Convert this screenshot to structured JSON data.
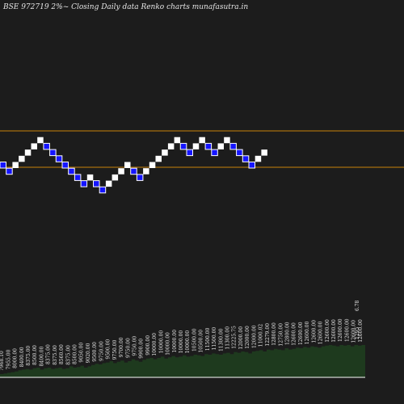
{
  "chart_data": {
    "type": "renko",
    "title": "BSE 972719 2%~  Closing Daily data  Renko  charts munafasutra.in",
    "colors": {
      "background": "#1c1c1c",
      "up_brick_fill": "#ffffff",
      "down_brick_fill": "#1515ff",
      "down_brick_stroke": "#ffffff",
      "hline": "#c8820a",
      "volume_fill": "#1e3a1e",
      "volume_stroke": "#ffffff",
      "text": "#e6e6e6"
    },
    "bricks": [
      "D",
      "D",
      "U",
      "U",
      "U",
      "U",
      "U",
      "D",
      "D",
      "D",
      "D",
      "D",
      "D",
      "D",
      "U",
      "D",
      "D",
      "U",
      "U",
      "U",
      "U",
      "D",
      "D",
      "U",
      "U",
      "U",
      "U",
      "U",
      "U",
      "D",
      "D",
      "U",
      "U",
      "D",
      "D",
      "U",
      "U",
      "D",
      "D",
      "D",
      "D",
      "U",
      "U"
    ],
    "brick_size_pct": 2,
    "horizontal_lines": [
      {
        "level": "upper"
      },
      {
        "level": "lower"
      }
    ],
    "volume_labels": [
      "7968.10",
      "7955.00",
      "8000.00",
      "8400.00",
      "8375.00",
      "8500.00",
      "8400.00",
      "8375.00",
      "8375.00",
      "8560.00",
      "8375.00",
      "8500.00",
      "9050.00",
      "9020.00",
      "9500.00",
      "9750.00",
      "9500.00",
      "9750.00",
      "9700.00",
      "9750.00",
      "9750.00",
      "9900.00",
      "9900.00",
      "10000.00",
      "10000.00",
      "10000.00",
      "10000.00",
      "10000.00",
      "10000.00",
      "10500.00",
      "10500.00",
      "11500.00",
      "11500.00",
      "11300.00",
      "11300.00",
      "12225.75",
      "12000.00",
      "12000.00",
      "12000.00",
      "11000.02",
      "12279.00",
      "12800.00",
      "12750.00",
      "12800.00",
      "12600.00",
      "12600.00",
      "12600.00",
      "12600.00",
      "12600.00",
      "12600.00",
      "12600.00",
      "12600.00",
      "12600.00",
      "12600.00",
      "12600.00"
    ],
    "volume_heights": [
      10,
      12,
      14,
      16,
      18,
      22,
      24,
      26,
      24,
      28,
      30,
      24,
      28,
      30,
      26,
      28,
      30,
      26,
      28,
      34,
      30,
      32,
      36,
      30,
      34,
      38,
      42,
      40,
      44,
      46,
      50,
      44,
      48,
      52,
      46,
      50,
      56,
      52,
      48,
      54,
      58,
      60,
      56,
      60,
      64,
      58,
      62,
      66,
      62,
      64,
      68,
      64,
      66,
      70,
      68,
      66,
      72,
      70,
      74,
      72,
      70,
      74,
      76,
      72,
      78,
      76,
      80,
      78,
      74,
      80,
      82,
      84,
      80,
      86,
      84,
      88,
      86,
      84,
      90,
      86,
      88,
      92,
      90,
      94,
      92,
      96,
      94,
      92,
      96,
      98,
      100,
      98,
      96,
      100,
      98,
      100,
      96,
      100,
      98,
      100
    ],
    "last_labels": [
      "6.78",
      "1295"
    ]
  }
}
